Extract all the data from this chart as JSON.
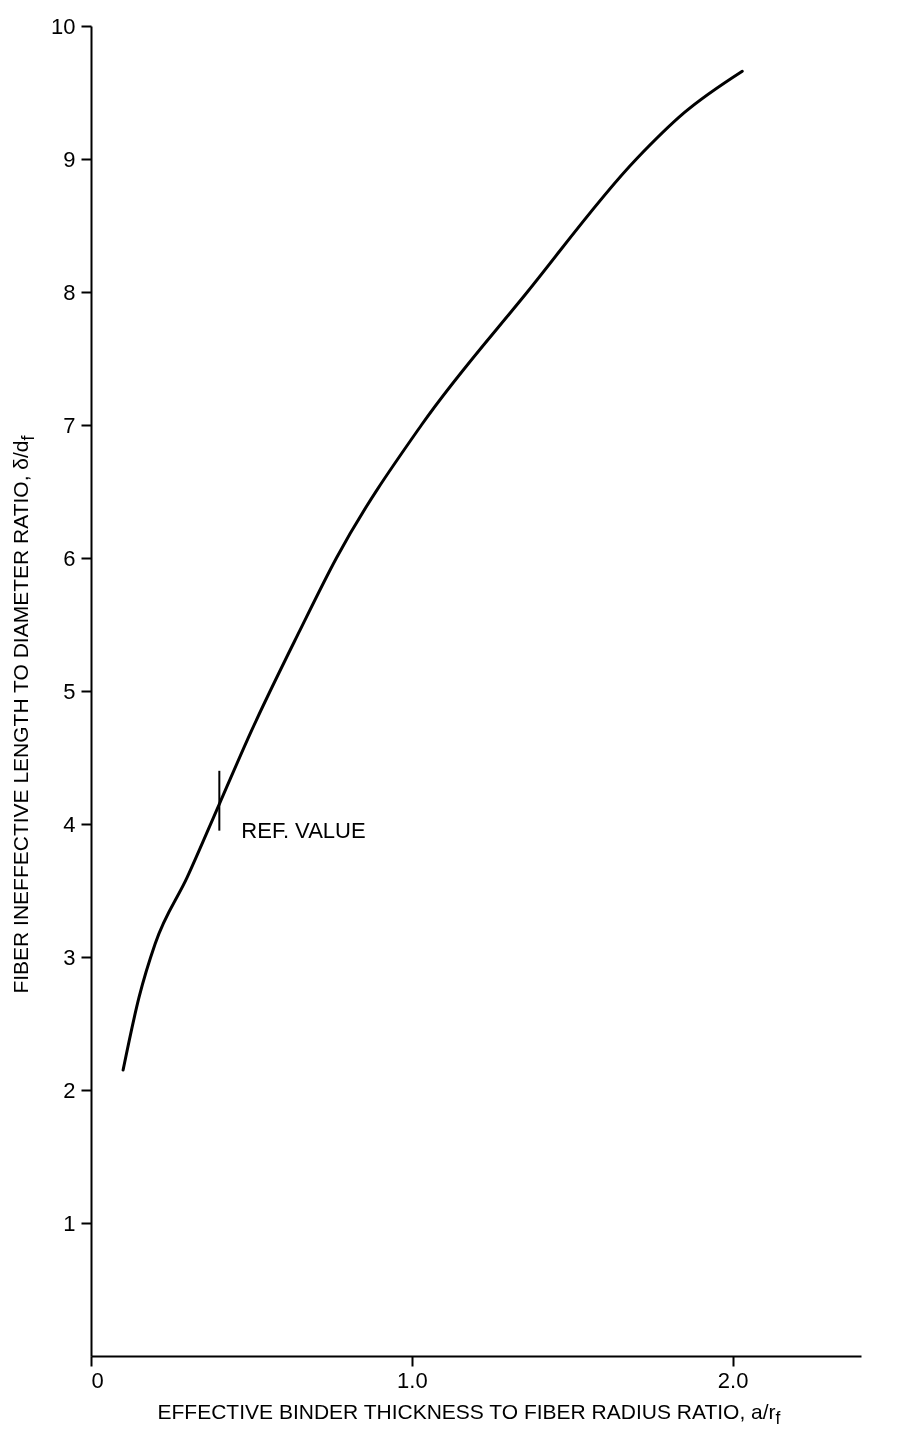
{
  "chart_data": {
    "type": "line",
    "xlabel": "EFFECTIVE BINDER THICKNESS TO FIBER RADIUS RATIO, a/r$_{f}$",
    "ylabel": "FIBER INEFFECTIVE LENGTH TO DIAMETER RATIO, δ/d$_{f}$",
    "x": [
      0.1,
      0.15,
      0.2,
      0.3,
      0.4,
      0.5,
      0.65,
      0.765,
      1.03,
      1.36,
      1.7,
      1.85,
      2.03
    ],
    "series": [
      {
        "color": "#000000",
        "values": [
          2.15,
          2.7,
          3.1,
          3.6,
          4.15,
          4.7,
          5.45,
          6.0,
          7.0,
          8.0,
          9.0,
          9.35,
          9.66
        ]
      }
    ],
    "xlim": [
      0,
      2.4
    ],
    "xticks": [
      0,
      {
        "value": 1,
        "label": "1.0"
      },
      {
        "value": 2,
        "label": "2.0"
      }
    ],
    "ylim": [
      0,
      10
    ],
    "yticks": [
      1,
      2,
      3,
      4,
      5,
      6,
      7,
      8,
      9,
      10
    ],
    "annotations": [
      {
        "text": "REF. VALUE",
        "x": 0.4,
        "y": 4.2
      }
    ],
    "grid": false,
    "marker": "none"
  }
}
